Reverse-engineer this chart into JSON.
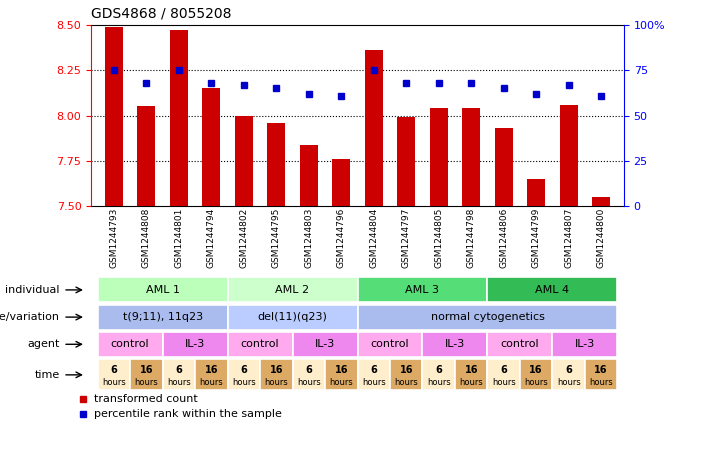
{
  "title": "GDS4868 / 8055208",
  "samples": [
    "GSM1244793",
    "GSM1244808",
    "GSM1244801",
    "GSM1244794",
    "GSM1244802",
    "GSM1244795",
    "GSM1244803",
    "GSM1244796",
    "GSM1244804",
    "GSM1244797",
    "GSM1244805",
    "GSM1244798",
    "GSM1244806",
    "GSM1244799",
    "GSM1244807",
    "GSM1244800"
  ],
  "red_values": [
    8.49,
    8.05,
    8.47,
    8.15,
    8.0,
    7.96,
    7.84,
    7.76,
    8.36,
    7.99,
    8.04,
    8.04,
    7.93,
    7.65,
    8.06,
    7.55
  ],
  "blue_values": [
    75,
    68,
    75,
    68,
    67,
    65,
    62,
    61,
    75,
    68,
    68,
    68,
    65,
    62,
    67,
    61
  ],
  "ylim_left": [
    7.5,
    8.5
  ],
  "ylim_right": [
    0,
    100
  ],
  "yticks_left": [
    7.5,
    7.75,
    8.0,
    8.25,
    8.5
  ],
  "yticks_right": [
    0,
    25,
    50,
    75,
    100
  ],
  "ytick_labels_right": [
    "0",
    "25",
    "50",
    "75",
    "100%"
  ],
  "grid_lines": [
    7.75,
    8.0,
    8.25
  ],
  "individual_groups": [
    {
      "label": "AML 1",
      "start": 0,
      "end": 4,
      "color": "#bbffbb"
    },
    {
      "label": "AML 2",
      "start": 4,
      "end": 8,
      "color": "#ccffcc"
    },
    {
      "label": "AML 3",
      "start": 8,
      "end": 12,
      "color": "#55dd77"
    },
    {
      "label": "AML 4",
      "start": 12,
      "end": 16,
      "color": "#33bb55"
    }
  ],
  "genotype_groups": [
    {
      "label": "t(9;11), 11q23",
      "start": 0,
      "end": 4,
      "color": "#aabbee"
    },
    {
      "label": "del(11)(q23)",
      "start": 4,
      "end": 8,
      "color": "#bbccff"
    },
    {
      "label": "normal cytogenetics",
      "start": 8,
      "end": 16,
      "color": "#aabbee"
    }
  ],
  "agent_groups": [
    {
      "label": "control",
      "start": 0,
      "end": 2,
      "color": "#ffaaee"
    },
    {
      "label": "IL-3",
      "start": 2,
      "end": 4,
      "color": "#ee88ee"
    },
    {
      "label": "control",
      "start": 4,
      "end": 6,
      "color": "#ffaaee"
    },
    {
      "label": "IL-3",
      "start": 6,
      "end": 8,
      "color": "#ee88ee"
    },
    {
      "label": "control",
      "start": 8,
      "end": 10,
      "color": "#ffaaee"
    },
    {
      "label": "IL-3",
      "start": 10,
      "end": 12,
      "color": "#ee88ee"
    },
    {
      "label": "control",
      "start": 12,
      "end": 14,
      "color": "#ffaaee"
    },
    {
      "label": "IL-3",
      "start": 14,
      "end": 16,
      "color": "#ee88ee"
    }
  ],
  "time_groups": [
    {
      "label": "6\nhours",
      "start": 0,
      "end": 1,
      "color": "#ffeecc"
    },
    {
      "label": "16\nhours",
      "start": 1,
      "end": 2,
      "color": "#ddaa66"
    },
    {
      "label": "6\nhours",
      "start": 2,
      "end": 3,
      "color": "#ffeecc"
    },
    {
      "label": "16\nhours",
      "start": 3,
      "end": 4,
      "color": "#ddaa66"
    },
    {
      "label": "6\nhours",
      "start": 4,
      "end": 5,
      "color": "#ffeecc"
    },
    {
      "label": "16\nhours",
      "start": 5,
      "end": 6,
      "color": "#ddaa66"
    },
    {
      "label": "6\nhours",
      "start": 6,
      "end": 7,
      "color": "#ffeecc"
    },
    {
      "label": "16\nhours",
      "start": 7,
      "end": 8,
      "color": "#ddaa66"
    },
    {
      "label": "6\nhours",
      "start": 8,
      "end": 9,
      "color": "#ffeecc"
    },
    {
      "label": "16\nhours",
      "start": 9,
      "end": 10,
      "color": "#ddaa66"
    },
    {
      "label": "6\nhours",
      "start": 10,
      "end": 11,
      "color": "#ffeecc"
    },
    {
      "label": "16\nhours",
      "start": 11,
      "end": 12,
      "color": "#ddaa66"
    },
    {
      "label": "6\nhours",
      "start": 12,
      "end": 13,
      "color": "#ffeecc"
    },
    {
      "label": "16\nhours",
      "start": 13,
      "end": 14,
      "color": "#ddaa66"
    },
    {
      "label": "6\nhours",
      "start": 14,
      "end": 15,
      "color": "#ffeecc"
    },
    {
      "label": "16\nhours",
      "start": 15,
      "end": 16,
      "color": "#ddaa66"
    }
  ],
  "legend_red": "transformed count",
  "legend_blue": "percentile rank within the sample",
  "bar_color": "#cc0000",
  "dot_color": "#0000cc",
  "bar_width": 0.55,
  "bg_color": "#ffffff",
  "xlabel_bg": "#cccccc",
  "row_label_fontsize": 8,
  "title_fontsize": 10
}
